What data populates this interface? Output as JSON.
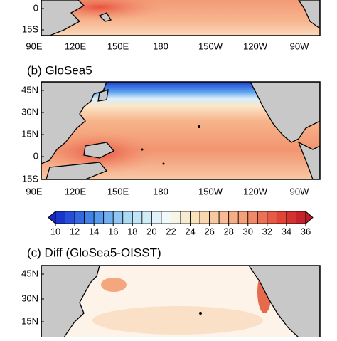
{
  "panels": [
    {
      "x_labels": [
        "90E",
        "120E",
        "150E",
        "180",
        "150W",
        "120W",
        "90W"
      ],
      "y_labels": [
        "0",
        "15S"
      ]
    },
    {
      "title": "(b) GloSea5",
      "x_labels": [
        "90E",
        "120E",
        "150E",
        "180",
        "150W",
        "120W",
        "90W"
      ],
      "y_labels": [
        "45N",
        "30N",
        "15N",
        "0",
        "15S"
      ]
    },
    {
      "title": "(c) Diff (GloSea5-OISST)",
      "y_labels": [
        "45N",
        "30N",
        "15N"
      ]
    }
  ],
  "colorbar": {
    "ticks": [
      10,
      12,
      14,
      16,
      18,
      20,
      22,
      24,
      26,
      28,
      30,
      32,
      34,
      36
    ]
  }
}
